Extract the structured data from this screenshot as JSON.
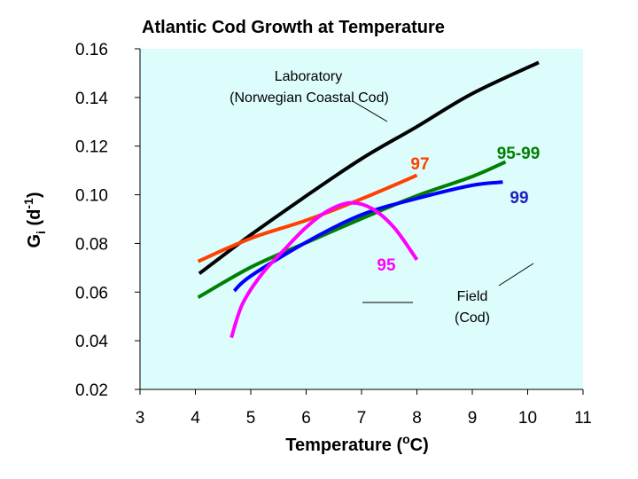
{
  "chart_data": {
    "type": "line",
    "title": "Atlantic Cod Growth at Temperature",
    "xlabel": {
      "main": "Temperature (",
      "sup": "o",
      "tail": "C)"
    },
    "ylabel": {
      "main": "G",
      "sub": "i",
      "mid": " (d",
      "sup": "-1",
      "tail": ")"
    },
    "xlim": [
      3,
      11
    ],
    "ylim": [
      0.02,
      0.16
    ],
    "x_ticks": [
      "3",
      "4",
      "5",
      "6",
      "7",
      "8",
      "9",
      "10",
      "11"
    ],
    "y_ticks": [
      "0.02",
      "0.04",
      "0.06",
      "0.08",
      "0.10",
      "0.12",
      "0.14",
      "0.16"
    ],
    "background": "#ddfcfc",
    "series": [
      {
        "label": "Laboratory (Norwegian Coastal Cod)",
        "color": "#000000",
        "points": [
          [
            4.07,
            0.0676
          ],
          [
            5.0,
            0.0835
          ],
          [
            6.0,
            0.0995
          ],
          [
            7.0,
            0.1148
          ],
          [
            8.0,
            0.128
          ],
          [
            9.0,
            0.1416
          ],
          [
            10.2,
            0.1544
          ]
        ]
      },
      {
        "name": "97",
        "color": "#ff4000",
        "points": [
          [
            4.05,
            0.0726
          ],
          [
            5.0,
            0.0821
          ],
          [
            6.0,
            0.0895
          ],
          [
            7.0,
            0.0983
          ],
          [
            8.0,
            0.108
          ]
        ]
      },
      {
        "name": "95-99",
        "color": "#008000",
        "points": [
          [
            4.05,
            0.0578
          ],
          [
            5.0,
            0.0702
          ],
          [
            6.0,
            0.0803
          ],
          [
            7.0,
            0.0902
          ],
          [
            8.0,
            0.0996
          ],
          [
            9.0,
            0.1075
          ],
          [
            9.6,
            0.1135
          ]
        ]
      },
      {
        "name": "99",
        "color": "#0000ff",
        "points": [
          [
            4.7,
            0.0605
          ],
          [
            5.0,
            0.0666
          ],
          [
            6.0,
            0.0805
          ],
          [
            7.0,
            0.0918
          ],
          [
            8.0,
            0.0985
          ],
          [
            9.0,
            0.1039
          ],
          [
            9.55,
            0.1052
          ]
        ]
      },
      {
        "name": "95",
        "color": "#ff00ff",
        "points": [
          [
            4.65,
            0.0413
          ],
          [
            4.85,
            0.0551
          ],
          [
            5.2,
            0.0674
          ],
          [
            5.6,
            0.0773
          ],
          [
            6.0,
            0.0866
          ],
          [
            6.4,
            0.0935
          ],
          [
            6.8,
            0.0967
          ],
          [
            7.2,
            0.0942
          ],
          [
            7.6,
            0.0862
          ],
          [
            8.0,
            0.0733
          ]
        ]
      }
    ],
    "annotations": {
      "lab_line1": "Laboratory",
      "lab_line2": "(Norwegian Coastal Cod)",
      "field_line1": "Field",
      "field_line2": "(Cod)"
    }
  }
}
